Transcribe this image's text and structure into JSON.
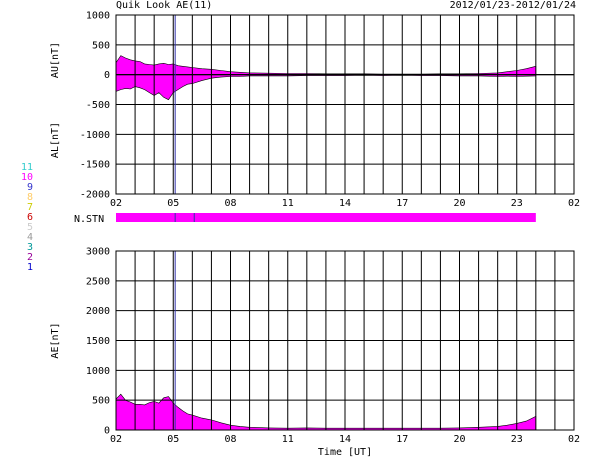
{
  "header": {
    "title": "Quik Look AE(11)",
    "date_range": "2012/01/23-2012/01/24"
  },
  "station_legend": [
    {
      "label": "11",
      "color": "#33cccc"
    },
    {
      "label": "10",
      "color": "#ff00ff"
    },
    {
      "label": "9",
      "color": "#3333cc"
    },
    {
      "label": "8",
      "color": "#ffcc66"
    },
    {
      "label": "7",
      "color": "#cccc00"
    },
    {
      "label": "6",
      "color": "#cc0000"
    },
    {
      "label": "5",
      "color": "#cccccc"
    },
    {
      "label": "4",
      "color": "#999999"
    },
    {
      "label": "3",
      "color": "#009999"
    },
    {
      "label": "2",
      "color": "#990099"
    },
    {
      "label": "1",
      "color": "#0000cc"
    }
  ],
  "station_bar": {
    "label": "N.STN",
    "color": "#ff00ff",
    "start_hour": 0,
    "end_hour": 22,
    "markers_hour": [
      3.1,
      4.1
    ]
  },
  "chart_data": [
    {
      "type": "area",
      "name": "AU/AL",
      "ylabel_upper": "AU[nT]",
      "ylabel_lower": "AL[nT]",
      "ylim": [
        -2000,
        1000
      ],
      "yticks": [
        "1000",
        "500",
        "0",
        "-500",
        "-1000",
        "-1500",
        "-2000"
      ],
      "ytick_values": [
        1000,
        500,
        0,
        -500,
        -1000,
        -1500,
        -2000
      ],
      "x_ticks": [
        "02",
        "05",
        "08",
        "11",
        "14",
        "17",
        "20",
        "23",
        "02"
      ],
      "x_range_hours": [
        0,
        24
      ],
      "fill_color": "#ff00ff",
      "marker_hour": 3.1,
      "series": [
        {
          "name": "AU",
          "x": [
            0,
            0.25,
            0.5,
            0.75,
            1,
            1.25,
            1.5,
            1.75,
            2,
            2.25,
            2.5,
            2.75,
            3,
            3.25,
            3.5,
            3.75,
            4,
            4.5,
            5,
            5.5,
            6,
            6.5,
            7,
            8,
            9,
            10,
            11,
            12,
            13,
            14,
            15,
            16,
            17,
            18,
            19,
            20,
            20.5,
            21,
            21.5,
            22
          ],
          "values": [
            200,
            320,
            280,
            250,
            230,
            220,
            180,
            170,
            160,
            180,
            190,
            170,
            180,
            150,
            140,
            130,
            120,
            100,
            90,
            70,
            50,
            40,
            30,
            25,
            20,
            20,
            15,
            15,
            15,
            10,
            10,
            10,
            15,
            15,
            20,
            30,
            50,
            70,
            100,
            140
          ]
        },
        {
          "name": "AL",
          "x": [
            0,
            0.25,
            0.5,
            0.75,
            1,
            1.25,
            1.5,
            1.75,
            2,
            2.25,
            2.5,
            2.75,
            3,
            3.25,
            3.5,
            3.75,
            4,
            4.5,
            5,
            5.5,
            6,
            6.5,
            7,
            8,
            9,
            10,
            11,
            12,
            13,
            14,
            15,
            16,
            17,
            18,
            19,
            20,
            20.5,
            21,
            21.5,
            22
          ],
          "values": [
            -280,
            -250,
            -230,
            -240,
            -200,
            -220,
            -250,
            -300,
            -350,
            -300,
            -380,
            -420,
            -300,
            -250,
            -200,
            -160,
            -150,
            -100,
            -60,
            -40,
            -30,
            -30,
            -20,
            -20,
            -20,
            -15,
            -15,
            -15,
            -10,
            -15,
            -10,
            -15,
            -15,
            -20,
            -20,
            -30,
            -25,
            -30,
            -25,
            -20
          ]
        }
      ]
    },
    {
      "type": "area",
      "name": "AE",
      "ylabel": "AE[nT]",
      "xlabel": "Time [UT]",
      "ylim": [
        0,
        3000
      ],
      "yticks": [
        "3000",
        "2500",
        "2000",
        "1500",
        "1000",
        "500",
        "0"
      ],
      "ytick_values": [
        3000,
        2500,
        2000,
        1500,
        1000,
        500,
        0
      ],
      "x_ticks": [
        "02",
        "05",
        "08",
        "11",
        "14",
        "17",
        "20",
        "23",
        "02"
      ],
      "x_range_hours": [
        0,
        24
      ],
      "fill_color": "#ff00ff",
      "marker_hour": 3.1,
      "series": [
        {
          "name": "AE",
          "x": [
            0,
            0.25,
            0.5,
            0.75,
            1,
            1.25,
            1.5,
            1.75,
            2,
            2.25,
            2.5,
            2.75,
            3,
            3.25,
            3.5,
            3.75,
            4,
            4.5,
            5,
            5.5,
            6,
            6.5,
            7,
            7.5,
            8,
            9,
            10,
            11,
            12,
            13,
            14,
            15,
            16,
            17,
            18,
            19,
            20,
            20.5,
            21,
            21.5,
            22
          ],
          "values": [
            520,
            600,
            500,
            470,
            430,
            430,
            420,
            460,
            480,
            450,
            540,
            560,
            450,
            380,
            320,
            270,
            250,
            200,
            170,
            120,
            80,
            60,
            45,
            40,
            35,
            30,
            35,
            30,
            30,
            30,
            30,
            30,
            30,
            30,
            35,
            45,
            60,
            80,
            110,
            150,
            230
          ]
        }
      ]
    }
  ]
}
